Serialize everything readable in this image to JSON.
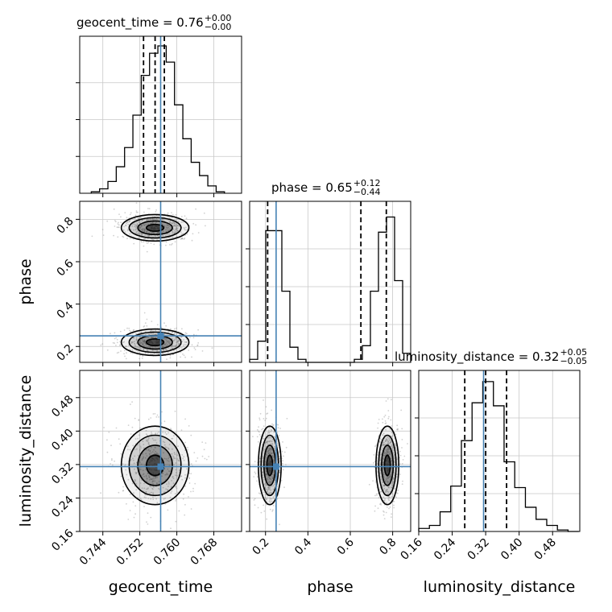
{
  "chart_data": {
    "type": "corner",
    "parameters": [
      "geocent_time",
      "phase",
      "luminosity_distance"
    ],
    "truths": {
      "geocent_time": 0.7565,
      "phase": 0.25,
      "luminosity_distance": 0.315
    },
    "truth_color": "#4682b4",
    "titles": [
      {
        "param": "geocent_time",
        "text": "geocent_time = 0.76",
        "sup": "+0.00",
        "sub": "−0.00"
      },
      {
        "param": "phase",
        "text": "phase = 0.65",
        "sup": "+0.12",
        "sub": "−0.44"
      },
      {
        "param": "luminosity_distance",
        "text": "luminosity_distance = 0.32",
        "sup": "+0.05",
        "sub": "−0.05"
      }
    ],
    "axes": {
      "geocent_time": {
        "range": [
          0.739,
          0.774
        ],
        "ticks": [
          "0.744",
          "0.752",
          "0.760",
          "0.768"
        ],
        "label": "geocent_time"
      },
      "phase": {
        "range": [
          0.125,
          0.885
        ],
        "ticks": [
          "0.2",
          "0.4",
          "0.6",
          "0.8"
        ],
        "label": "phase"
      },
      "luminosity_distance": {
        "range": [
          0.16,
          0.545
        ],
        "ticks": [
          "0.16",
          "0.24",
          "0.32",
          "0.40",
          "0.48"
        ],
        "label": "luminosity_distance"
      }
    },
    "histograms": {
      "geocent_time": {
        "bin_edges": [
          0.7415,
          0.7433,
          0.7451,
          0.7469,
          0.7487,
          0.7505,
          0.7523,
          0.7541,
          0.7559,
          0.7577,
          0.7595,
          0.7613,
          0.7631,
          0.7649,
          0.7667,
          0.7685,
          0.7703
        ],
        "values": [
          0.01,
          0.03,
          0.08,
          0.18,
          0.31,
          0.53,
          0.8,
          0.95,
          1.0,
          0.89,
          0.6,
          0.37,
          0.21,
          0.12,
          0.05,
          0.01
        ],
        "quantiles": [
          0.7528,
          0.7553,
          0.7573
        ]
      },
      "phase": {
        "bin_edges": [
          0.125,
          0.163,
          0.201,
          0.239,
          0.277,
          0.315,
          0.353,
          0.391,
          0.429,
          0.467,
          0.505,
          0.543,
          0.581,
          0.619,
          0.657,
          0.695,
          0.733,
          0.771,
          0.809,
          0.847,
          0.885
        ],
        "values": [
          0.02,
          0.14,
          0.87,
          0.87,
          0.47,
          0.1,
          0.02,
          0.0,
          0.0,
          0.0,
          0.0,
          0.0,
          0.0,
          0.02,
          0.11,
          0.47,
          0.86,
          0.96,
          0.54,
          0.06
        ],
        "quantiles": [
          0.21,
          0.65,
          0.77
        ]
      },
      "luminosity_distance": {
        "bin_edges": [
          0.16,
          0.1855,
          0.211,
          0.2365,
          0.262,
          0.2875,
          0.313,
          0.3385,
          0.364,
          0.3895,
          0.415,
          0.4405,
          0.466,
          0.4915,
          0.517,
          0.5425
        ],
        "values": [
          0.02,
          0.04,
          0.13,
          0.3,
          0.6,
          0.85,
          0.99,
          0.83,
          0.46,
          0.29,
          0.16,
          0.08,
          0.04,
          0.01,
          0.0
        ],
        "quantiles": [
          0.27,
          0.32,
          0.37
        ]
      }
    },
    "density_blobs": {
      "phase_vs_geocent_time": [
        {
          "x": 0.7553,
          "y": 0.76,
          "sx": 0.0034,
          "sy": 0.03
        },
        {
          "x": 0.7553,
          "y": 0.22,
          "sx": 0.0034,
          "sy": 0.03
        }
      ],
      "luminosity_distance_vs_geocent_time": [
        {
          "x": 0.7553,
          "y": 0.318,
          "sx": 0.0034,
          "sy": 0.045
        }
      ],
      "luminosity_distance_vs_phase": [
        {
          "x": 0.22,
          "y": 0.318,
          "sx": 0.025,
          "sy": 0.045
        },
        {
          "x": 0.775,
          "y": 0.318,
          "sx": 0.025,
          "sy": 0.045
        }
      ]
    }
  }
}
